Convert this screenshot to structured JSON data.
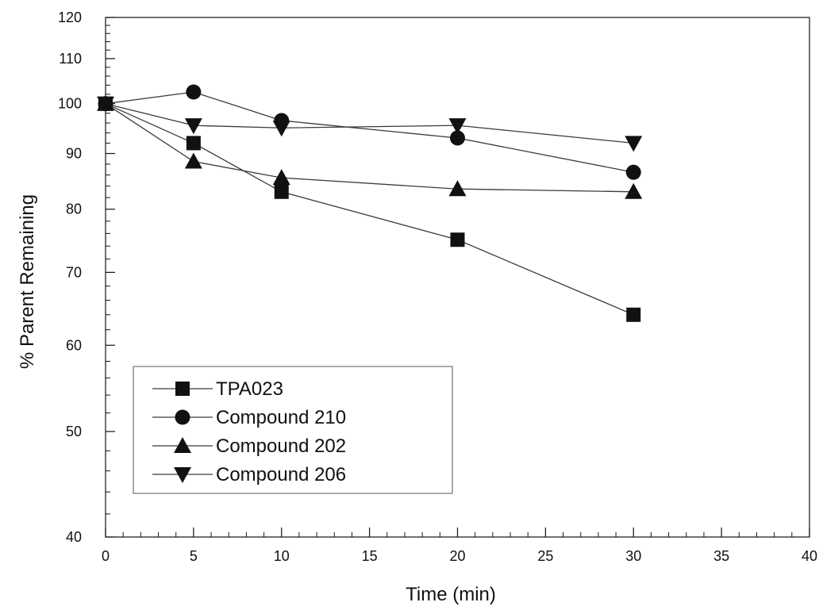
{
  "chart_data": {
    "type": "line",
    "title": "",
    "xlabel": "Time (min)",
    "ylabel": "% Parent Remaining",
    "xlim": [
      0,
      40
    ],
    "ylim": [
      40,
      120
    ],
    "yscale": "log",
    "grid": false,
    "legend_position": "bottom-left",
    "x_ticks": [
      0,
      5,
      10,
      15,
      20,
      25,
      30,
      35,
      40
    ],
    "y_ticks": [
      40,
      50,
      60,
      70,
      80,
      90,
      100,
      110,
      120
    ],
    "x_tick_labels": [
      "0",
      "5",
      "10",
      "15",
      "20",
      "25",
      "30",
      "35",
      "40"
    ],
    "y_tick_labels": [
      "40",
      "50",
      "60",
      "70",
      "80",
      "90",
      "100",
      "110",
      "120"
    ],
    "x": [
      0,
      5,
      10,
      20,
      30
    ],
    "series": [
      {
        "name": "TPA023",
        "marker": "square",
        "values": [
          100,
          92,
          83,
          75,
          64
        ]
      },
      {
        "name": "Compound 210",
        "marker": "circle",
        "values": [
          100,
          102.5,
          96.5,
          93,
          86.5
        ]
      },
      {
        "name": "Compound 202",
        "marker": "triangle-up",
        "values": [
          100,
          88.5,
          85.5,
          83.5,
          83
        ]
      },
      {
        "name": "Compound 206",
        "marker": "triangle-down",
        "values": [
          100,
          95.5,
          95,
          95.5,
          92
        ]
      }
    ]
  },
  "colors": {
    "line": "#3a3a3a",
    "marker": "#111111",
    "axis": "#111111",
    "background": "#ffffff"
  }
}
